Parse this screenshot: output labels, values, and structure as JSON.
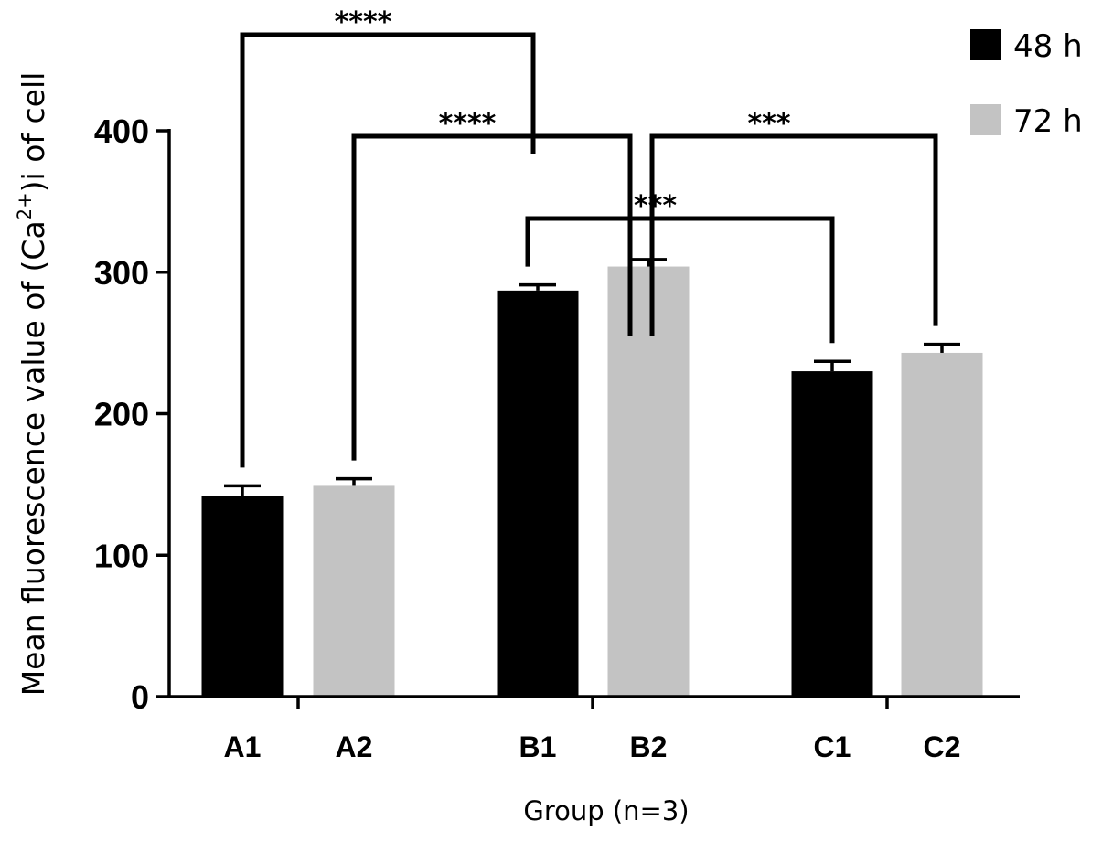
{
  "chart_data": {
    "type": "bar",
    "xlabel": "Group (n=3)",
    "ylabel": {
      "prefix": "Mean fluorescence value of (Ca",
      "superscript": "2+",
      "suffix": ")i of cell"
    },
    "ylim": [
      0,
      400
    ],
    "yticks": [
      0,
      100,
      200,
      300,
      400
    ],
    "groups": [
      "A",
      "B",
      "C"
    ],
    "categories": [
      "A1",
      "A2",
      "B1",
      "B2",
      "C1",
      "C2"
    ],
    "values": [
      142,
      149,
      287,
      304,
      230,
      243
    ],
    "errors": [
      7,
      5,
      4,
      5,
      7,
      6
    ],
    "series_of_bar": [
      "48 h",
      "72 h",
      "48 h",
      "72 h",
      "48 h",
      "72 h"
    ],
    "legend": [
      {
        "name": "48 h",
        "color": "#000000"
      },
      {
        "name": "72 h",
        "color": "#c3c3c3"
      }
    ],
    "legend_position": "top-right",
    "significance": [
      {
        "from": "A1",
        "to": "B1",
        "label": "****"
      },
      {
        "from": "A2",
        "to": "B2",
        "label": "****"
      },
      {
        "from": "B2",
        "to": "C2",
        "label": "***"
      },
      {
        "from": "B1",
        "to": "C1",
        "label": "***"
      }
    ]
  }
}
